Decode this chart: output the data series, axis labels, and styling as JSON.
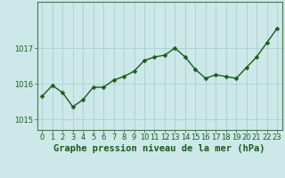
{
  "x": [
    0,
    1,
    2,
    3,
    4,
    5,
    6,
    7,
    8,
    9,
    10,
    11,
    12,
    13,
    14,
    15,
    16,
    17,
    18,
    19,
    20,
    21,
    22,
    23
  ],
  "y": [
    1015.65,
    1015.95,
    1015.75,
    1015.35,
    1015.55,
    1015.9,
    1015.9,
    1016.1,
    1016.2,
    1016.35,
    1016.65,
    1016.75,
    1016.8,
    1017.0,
    1016.75,
    1016.4,
    1016.15,
    1016.25,
    1016.2,
    1016.15,
    1016.45,
    1016.75,
    1017.15,
    1017.55
  ],
  "line_color": "#1a5c1a",
  "marker": "D",
  "marker_size": 2.5,
  "line_width": 1.0,
  "bg_color": "#cce8e8",
  "grid_color": "#aacfcf",
  "axis_bg": "#cce8e8",
  "title": "Graphe pression niveau de la mer (hPa)",
  "title_color": "#1a5c1a",
  "title_fontsize": 7.5,
  "tick_color": "#1a5c1a",
  "tick_fontsize": 6,
  "yticks": [
    1015,
    1016,
    1017
  ],
  "ylim": [
    1014.7,
    1018.3
  ],
  "xlim": [
    -0.5,
    23.5
  ],
  "border_color": "#4a7a4a"
}
